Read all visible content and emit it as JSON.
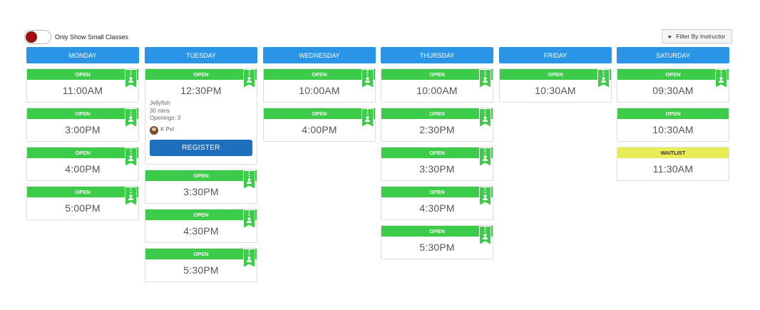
{
  "toggle": {
    "label": "Only Show Small Classes",
    "on": false
  },
  "filter": {
    "label": "Filter By Instructor"
  },
  "days": [
    {
      "name": "MONDAY",
      "classes": [
        {
          "status": "OPEN",
          "time": "11:00AM",
          "badge": true
        },
        {
          "status": "OPEN",
          "time": "3:00PM",
          "badge": true
        },
        {
          "status": "OPEN",
          "time": "4:00PM",
          "badge": true
        },
        {
          "status": "OPEN",
          "time": "5:00PM",
          "badge": true
        }
      ]
    },
    {
      "name": "TUESDAY",
      "classes": [
        {
          "status": "OPEN",
          "time": "12:30PM",
          "badge": true,
          "expanded": true,
          "class_name": "Jellyfish",
          "duration": "30 mins",
          "openings": "Openings: 3",
          "instructor": "K Pel",
          "register_label": "REGISTER"
        },
        {
          "status": "OPEN",
          "time": "3:30PM",
          "badge": true
        },
        {
          "status": "OPEN",
          "time": "4:30PM",
          "badge": true
        },
        {
          "status": "OPEN",
          "time": "5:30PM",
          "badge": true
        }
      ]
    },
    {
      "name": "WEDNESDAY",
      "classes": [
        {
          "status": "OPEN",
          "time": "10:00AM",
          "badge": true
        },
        {
          "status": "OPEN",
          "time": "4:00PM",
          "badge": true
        }
      ]
    },
    {
      "name": "THURSDAY",
      "classes": [
        {
          "status": "OPEN",
          "time": "10:00AM",
          "badge": true
        },
        {
          "status": "OPEN",
          "time": "2:30PM",
          "badge": true
        },
        {
          "status": "OPEN",
          "time": "3:30PM",
          "badge": true
        },
        {
          "status": "OPEN",
          "time": "4:30PM",
          "badge": true
        },
        {
          "status": "OPEN",
          "time": "5:30PM",
          "badge": true
        }
      ]
    },
    {
      "name": "FRIDAY",
      "classes": [
        {
          "status": "OPEN",
          "time": "10:30AM",
          "badge": true
        }
      ]
    },
    {
      "name": "SATURDAY",
      "classes": [
        {
          "status": "OPEN",
          "time": "09:30AM",
          "badge": true
        },
        {
          "status": "OPEN",
          "time": "10:30AM",
          "badge": false
        },
        {
          "status": "WAITLIST",
          "time": "11:30AM",
          "badge": false
        }
      ]
    }
  ],
  "colors": {
    "header": "#2a95e6",
    "open": "#3dcb4a",
    "waitlist": "#e8ec55",
    "register": "#1f6fbf",
    "toggle_knob": "#a10f0f"
  }
}
